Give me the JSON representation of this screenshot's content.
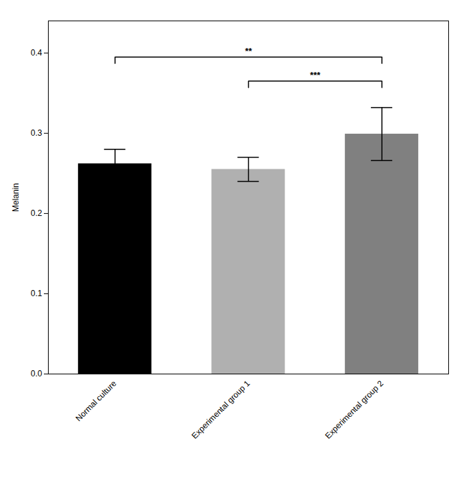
{
  "chart_data": {
    "type": "bar",
    "categories": [
      "Normal culture",
      "Experimental group 1",
      "Experimental group 2"
    ],
    "values": [
      0.262,
      0.255,
      0.299
    ],
    "errors": [
      0.018,
      0.015,
      0.033
    ],
    "colors": [
      "#000000",
      "#b0b0b0",
      "#808080"
    ],
    "ylabel": "Melanin",
    "ylim": [
      0,
      0.44
    ],
    "yticks": [
      {
        "value": 0,
        "label": "0.0"
      },
      0.1,
      0.2,
      0.3,
      0.4
    ],
    "grid": false,
    "annotations": [
      {
        "x1": "Normal culture",
        "x2": "Experimental group 2",
        "y": 0.395,
        "label": "**"
      },
      {
        "x1": "Experimental group 1",
        "x2": "Experimental group 2",
        "y": 0.365,
        "label": "***"
      }
    ]
  }
}
